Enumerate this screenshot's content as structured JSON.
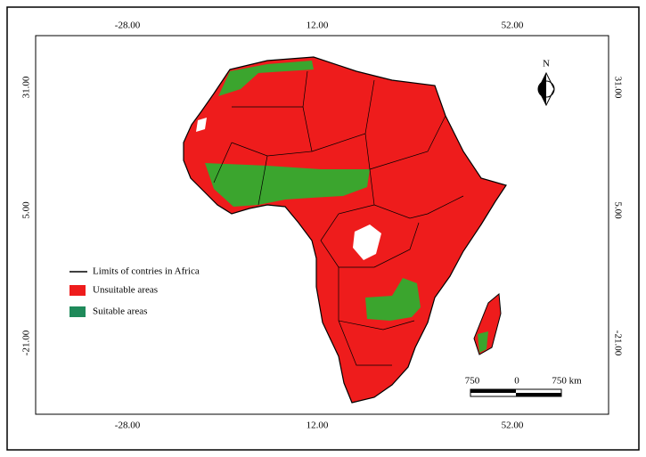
{
  "coordinates": {
    "top": [
      "-28.00",
      "12.00",
      "52.00"
    ],
    "bottom": [
      "-28.00",
      "12.00",
      "52.00"
    ],
    "left": [
      "31.00",
      "5.00",
      "-21.00"
    ],
    "right": [
      "31.00",
      "5.00",
      "-21.00"
    ]
  },
  "legend": [
    "Limits of contries in Africa",
    "Unsuitable areas",
    "Suitable areas"
  ],
  "scale_bar": [
    "750",
    "0",
    "750 km"
  ],
  "north_arrow": "N"
}
